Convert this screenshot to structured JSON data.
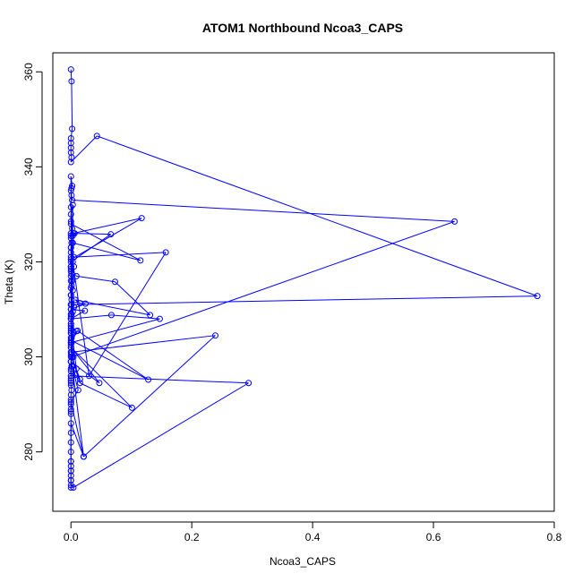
{
  "chart_data": {
    "type": "line",
    "title": "ATOM1 Northbound Ncoa3_CAPS",
    "xlabel": "Ncoa3_CAPS",
    "ylabel": "Theta (K)",
    "xlim": [
      -0.03,
      0.8
    ],
    "ylim": [
      267.5,
      364
    ],
    "xticks": [
      0.0,
      0.2,
      0.4,
      0.6,
      0.8
    ],
    "xtick_labels": [
      "0.0",
      "0.2",
      "0.4",
      "0.6",
      "0.8"
    ],
    "yticks": [
      280,
      300,
      320,
      340,
      360
    ],
    "ytick_labels": [
      "280",
      "300",
      "320",
      "340",
      "360"
    ],
    "grid": false,
    "legend": "none",
    "series": [
      {
        "color": "#0000ff",
        "marker": "open-circle",
        "points": [
          [
            0.0,
            360.5
          ],
          [
            0.001,
            358.0
          ],
          [
            0.002,
            348.0
          ],
          [
            0.0,
            346.0
          ],
          [
            0.0,
            345.0
          ],
          [
            0.0,
            344.0
          ],
          [
            0.0,
            343.0
          ],
          [
            0.001,
            342.0
          ],
          [
            0.0,
            341.0
          ],
          [
            0.043,
            346.5
          ],
          [
            0.772,
            312.8
          ],
          [
            0.001,
            311.0
          ],
          [
            0.0,
            338.0
          ],
          [
            0.002,
            336.0
          ],
          [
            0.001,
            335.5
          ],
          [
            0.0,
            335.0
          ],
          [
            0.001,
            334.0
          ],
          [
            0.002,
            333.0
          ],
          [
            0.635,
            328.5
          ],
          [
            0.002,
            300.0
          ],
          [
            0.003,
            332.0
          ],
          [
            0.0,
            330.0
          ],
          [
            0.0,
            328.5
          ],
          [
            0.002,
            327.0
          ],
          [
            0.0,
            326.0
          ],
          [
            0.0,
            325.5
          ],
          [
            0.0,
            325.0
          ],
          [
            0.001,
            324.0
          ],
          [
            0.0,
            323.0
          ],
          [
            0.0,
            322.0
          ],
          [
            0.005,
            321.0
          ],
          [
            0.157,
            322.0
          ],
          [
            0.03,
            296.0
          ],
          [
            0.003,
            320.0
          ],
          [
            0.0,
            319.0
          ],
          [
            0.0,
            318.0
          ],
          [
            0.001,
            317.5
          ],
          [
            0.0,
            317.0
          ],
          [
            0.002,
            316.0
          ],
          [
            0.001,
            315.0
          ],
          [
            0.0,
            314.5
          ],
          [
            0.003,
            314.0
          ],
          [
            0.0,
            313.0
          ],
          [
            0.001,
            312.0
          ],
          [
            0.0,
            311.0
          ],
          [
            0.005,
            310.5
          ],
          [
            0.0,
            310.0
          ],
          [
            0.003,
            309.5
          ],
          [
            0.001,
            309.0
          ],
          [
            0.0,
            308.5
          ],
          [
            0.0,
            308.0
          ],
          [
            0.0,
            307.0
          ],
          [
            0.0,
            306.0
          ],
          [
            0.0,
            305.5
          ],
          [
            0.0,
            305.0
          ],
          [
            0.001,
            304.0
          ],
          [
            0.0,
            303.0
          ],
          [
            0.0,
            302.5
          ],
          [
            0.0,
            302.0
          ],
          [
            0.001,
            301.0
          ],
          [
            0.239,
            304.5
          ],
          [
            0.021,
            279.0
          ],
          [
            0.0,
            300.0
          ],
          [
            0.0,
            299.0
          ],
          [
            0.001,
            298.0
          ],
          [
            0.0,
            297.5
          ],
          [
            0.0,
            297.0
          ],
          [
            0.0,
            296.0
          ],
          [
            0.0,
            295.5
          ],
          [
            0.0,
            295.0
          ],
          [
            0.0,
            294.5
          ],
          [
            0.0,
            294.0
          ],
          [
            0.001,
            293.0
          ],
          [
            0.0,
            292.0
          ],
          [
            0.0,
            291.0
          ],
          [
            0.0,
            290.0
          ],
          [
            0.0,
            289.0
          ],
          [
            0.0,
            288.5
          ],
          [
            0.0,
            288.0
          ],
          [
            0.0,
            278.0
          ],
          [
            0.0,
            277.0
          ],
          [
            0.0,
            276.0
          ],
          [
            0.0,
            275.0
          ],
          [
            0.0,
            274.0
          ],
          [
            0.0,
            273.0
          ],
          [
            0.004,
            272.5
          ],
          [
            0.294,
            294.5
          ],
          [
            0.0,
            296.0
          ],
          [
            0.0,
            299.0
          ],
          [
            0.004,
            300.0
          ],
          [
            0.0,
            301.0
          ],
          [
            0.001,
            303.0
          ],
          [
            0.0,
            304.0
          ],
          [
            0.0,
            305.0
          ],
          [
            0.0,
            307.0
          ],
          [
            0.0,
            309.0
          ],
          [
            0.0,
            311.0
          ],
          [
            0.0,
            313.0
          ],
          [
            0.0,
            316.0
          ],
          [
            0.0,
            319.0
          ],
          [
            0.0,
            321.0
          ],
          [
            0.0,
            323.0
          ],
          [
            0.006,
            326.0
          ],
          [
            0.066,
            325.8
          ],
          [
            0.0,
            320.0
          ],
          [
            0.003,
            325.5
          ],
          [
            0.0,
            331.5
          ],
          [
            0.003,
            324.0
          ],
          [
            0.115,
            320.3
          ],
          [
            0.0,
            328.0
          ],
          [
            0.004,
            326.0
          ],
          [
            0.117,
            329.2
          ],
          [
            0.0,
            320.5
          ],
          [
            0.005,
            319.0
          ],
          [
            0.0,
            318.5
          ],
          [
            0.009,
            317.0
          ],
          [
            0.073,
            315.8
          ],
          [
            0.131,
            308.8
          ],
          [
            0.007,
            312.0
          ],
          [
            0.015,
            311.3
          ],
          [
            0.024,
            311.2
          ],
          [
            0.0,
            310.0
          ],
          [
            0.023,
            309.7
          ],
          [
            0.0,
            308.0
          ],
          [
            0.067,
            308.8
          ],
          [
            0.147,
            308.0
          ],
          [
            0.0,
            303.0
          ],
          [
            0.011,
            305.5
          ],
          [
            0.128,
            295.2
          ],
          [
            0.0,
            303.5
          ],
          [
            0.009,
            305.4
          ],
          [
            0.0,
            306.5
          ],
          [
            0.009,
            297.5
          ],
          [
            0.002,
            298.0
          ],
          [
            0.007,
            296.2
          ],
          [
            0.015,
            295.3
          ],
          [
            0.0,
            300.5
          ],
          [
            0.015,
            294.5
          ],
          [
            0.101,
            289.3
          ],
          [
            0.0,
            302.0
          ],
          [
            0.047,
            294.5
          ],
          [
            0.0,
            299.0
          ],
          [
            0.012,
            293.0
          ],
          [
            0.0,
            290.5
          ],
          [
            0.021,
            279.0
          ],
          [
            0.0,
            286.0
          ],
          [
            0.0,
            284.0
          ],
          [
            0.0,
            282.0
          ],
          [
            0.0,
            280.0
          ],
          [
            0.0,
            278.0
          ],
          [
            0.0,
            276.0
          ],
          [
            0.0,
            274.0
          ],
          [
            0.0,
            272.5
          ]
        ]
      }
    ]
  }
}
